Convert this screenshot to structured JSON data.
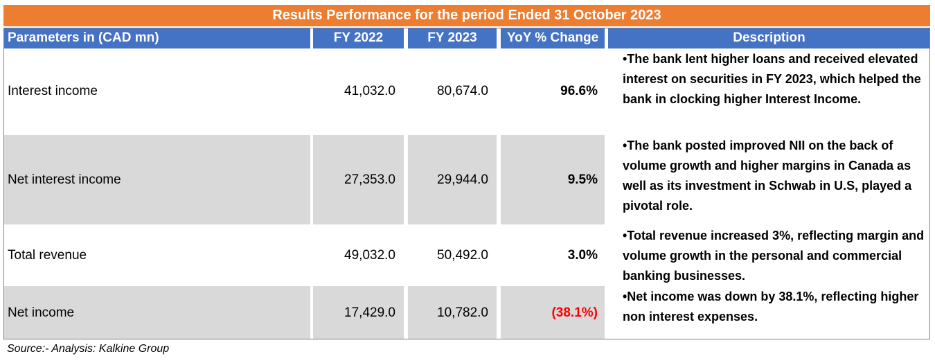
{
  "title": "Results Performance for the period Ended 31 October 2023",
  "headers": {
    "parameter": "Parameters in (CAD mn)",
    "fy2022": "FY 2022",
    "fy2023": "FY 2023",
    "yoy": "YoY % Change",
    "description": "Description"
  },
  "rows": [
    {
      "parameter": "Interest income",
      "fy2022": "41,032.0",
      "fy2023": "80,674.0",
      "yoy": "96.6%",
      "description": "•The bank lent higher loans and received elevated interest on securities in FY 2023, which helped the bank in clocking higher Interest Income."
    },
    {
      "parameter": " Net interest income",
      "fy2022": "27,353.0",
      "fy2023": "29,944.0",
      "yoy": "9.5%",
      "description": "•The bank posted improved NII on the back of volume growth and higher margins in Canada as well as its investment in Schwab in U.S, played a pivotal role."
    },
    {
      "parameter": "Total revenue",
      "fy2022": "49,032.0",
      "fy2023": "50,492.0",
      "yoy": "3.0%",
      "description": "•Total revenue increased 3%, reflecting margin and volume growth in the personal and commercial banking businesses."
    },
    {
      "parameter": "Net income",
      "fy2022": "17,429.0",
      "fy2023": "10,782.0",
      "yoy": "(38.1%)",
      "description": "•Net income was down by 38.1%, reflecting higher non interest expenses."
    }
  ],
  "source": "Source:- Analysis: Kalkine Group",
  "colors": {
    "title_bg": "#ed7d31",
    "header_bg": "#4472c4",
    "shaded_row": "#d9d9d9",
    "negative": "#ff0000"
  }
}
